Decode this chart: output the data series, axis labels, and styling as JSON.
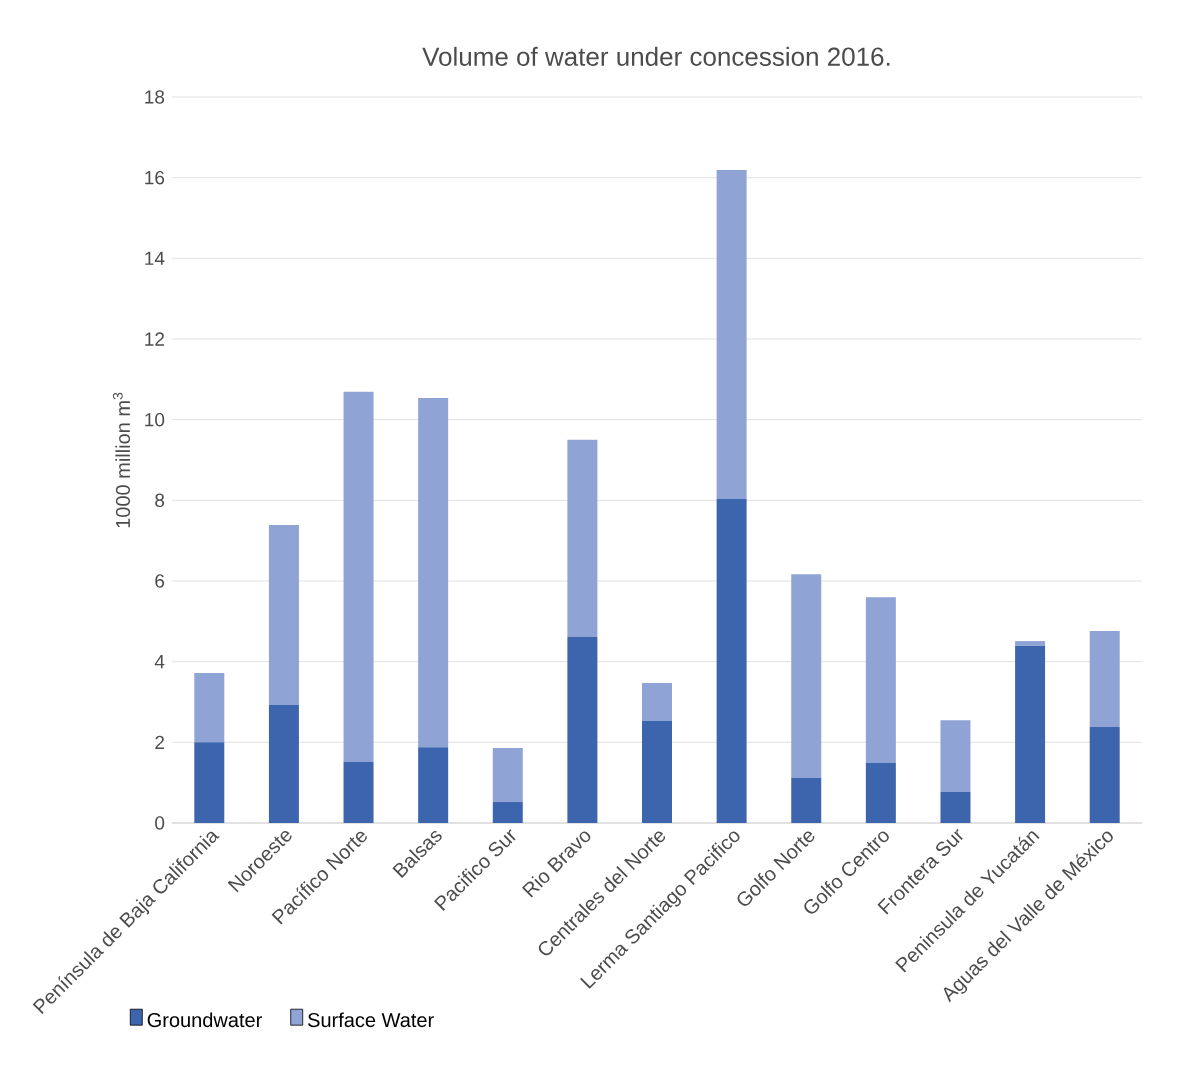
{
  "chart_data": {
    "type": "bar",
    "stacked": true,
    "title": "Volume of water under concession 2016.",
    "ylabel": "1000 million m$^{3}$",
    "categories": [
      "Península de Baja California",
      "Noroeste",
      "Pacífico Norte",
      "Balsas",
      "Pacifico Sur",
      "Rio Bravo",
      "Centrales del Norte",
      "Lerma Santiago Pacifico",
      "Golfo Norte",
      "Golfo Centro",
      "Frontera Sur",
      "Peninsula de Yucatán",
      "Aguas del Valle de México"
    ],
    "series": [
      {
        "name": "Groundwater",
        "color": "#3d65ae",
        "values": [
          2.0,
          2.93,
          1.51,
          1.88,
          0.52,
          4.61,
          2.53,
          8.03,
          1.12,
          1.49,
          0.77,
          4.39,
          2.38
        ]
      },
      {
        "name": "Surface Water",
        "color": "#8fa3d4",
        "values": [
          1.72,
          4.46,
          9.18,
          8.66,
          1.34,
          4.89,
          0.94,
          8.16,
          5.05,
          4.11,
          1.78,
          0.12,
          2.38
        ]
      }
    ],
    "ylim": [
      0,
      18
    ],
    "yticks": [
      0,
      2,
      4,
      6,
      8,
      10,
      12,
      14,
      16,
      18
    ],
    "grid": "y",
    "legend": "bottom left"
  }
}
